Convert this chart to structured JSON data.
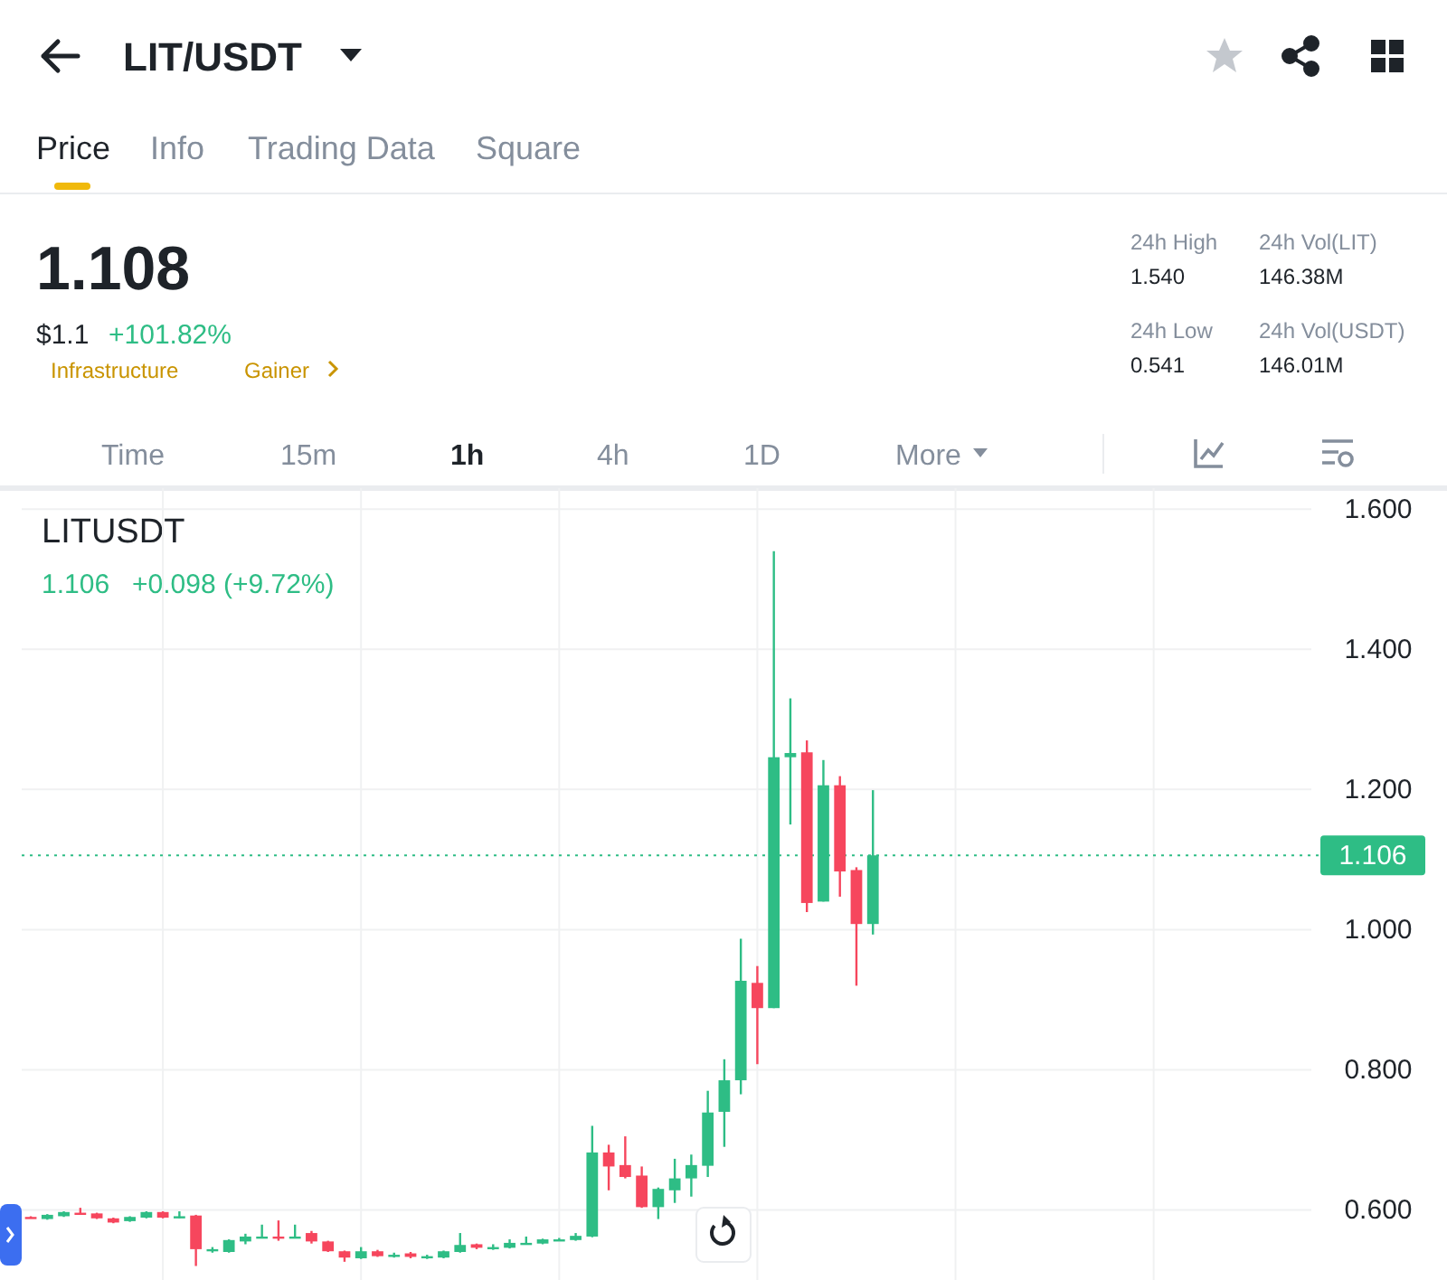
{
  "chart_data": {
    "type": "candlestick",
    "title": "LIT/USDT",
    "annotations": [
      "Price",
      "Info",
      "Trading Data",
      "Square",
      "1.108",
      "$1.1",
      "+101.82%",
      "Infrastructure",
      "Gainer",
      "24h High",
      "1.540",
      "24h Low",
      "0.541",
      "24h Vol(LIT)",
      "146.38M",
      "24h Vol(USDT)",
      "146.01M",
      "Time",
      "15m",
      "1h",
      "4h",
      "1D",
      "More",
      "LITUSDT",
      "1.106",
      "+0.098 (+9.72%)"
    ],
    "categories": [
      null,
      null,
      null,
      null,
      null,
      null,
      null,
      null,
      null,
      null,
      null,
      null,
      null,
      null,
      null,
      null,
      null,
      null,
      null,
      null,
      null,
      null,
      null,
      null,
      null,
      null,
      null,
      null,
      null,
      null,
      null,
      null,
      null,
      null,
      null,
      null,
      null,
      null,
      null,
      null,
      null,
      null,
      null,
      null,
      null,
      null,
      null,
      null,
      null,
      null,
      null,
      null,
      null,
      null,
      null,
      null,
      null,
      null,
      null,
      null,
      null,
      null,
      null,
      null,
      null,
      null,
      null,
      null,
      null,
      null,
      null,
      null,
      null,
      null,
      null,
      null,
      null,
      null
    ],
    "ohlc": [
      [
        0.59,
        0.591,
        0.588,
        0.589
      ],
      [
        0.587,
        0.594,
        0.586,
        0.593
      ],
      [
        0.591,
        0.598,
        0.59,
        0.597
      ],
      [
        0.596,
        0.603,
        0.594,
        0.595
      ],
      [
        0.595,
        0.596,
        0.587,
        0.588
      ],
      [
        0.588,
        0.589,
        0.581,
        0.582
      ],
      [
        0.584,
        0.591,
        0.583,
        0.59
      ],
      [
        0.589,
        0.598,
        0.588,
        0.597
      ],
      [
        0.597,
        0.598,
        0.588,
        0.589
      ],
      [
        0.59,
        0.598,
        0.588,
        0.591
      ],
      [
        0.592,
        0.593,
        0.52,
        0.544
      ],
      [
        0.543,
        0.547,
        0.539,
        0.544
      ],
      [
        0.54,
        0.558,
        0.539,
        0.557
      ],
      [
        0.555,
        0.566,
        0.551,
        0.562
      ],
      [
        0.561,
        0.579,
        0.56,
        0.562
      ],
      [
        0.562,
        0.585,
        0.556,
        0.561
      ],
      [
        0.561,
        0.579,
        0.56,
        0.562
      ],
      [
        0.567,
        0.57,
        0.552,
        0.555
      ],
      [
        0.555,
        0.556,
        0.54,
        0.541
      ],
      [
        0.541,
        0.542,
        0.526,
        0.532
      ],
      [
        0.531,
        0.547,
        0.53,
        0.541
      ],
      [
        0.541,
        0.543,
        0.533,
        0.534
      ],
      [
        0.535,
        0.539,
        0.532,
        0.536
      ],
      [
        0.538,
        0.54,
        0.531,
        0.533
      ],
      [
        0.533,
        0.536,
        0.53,
        0.534
      ],
      [
        0.532,
        0.542,
        0.531,
        0.541
      ],
      [
        0.54,
        0.567,
        0.539,
        0.55
      ],
      [
        0.551,
        0.552,
        0.544,
        0.546
      ],
      [
        0.546,
        0.551,
        0.543,
        0.547
      ],
      [
        0.546,
        0.558,
        0.545,
        0.553
      ],
      [
        0.552,
        0.562,
        0.551,
        0.553
      ],
      [
        0.552,
        0.559,
        0.551,
        0.558
      ],
      [
        0.557,
        0.56,
        0.556,
        0.558
      ],
      [
        0.557,
        0.567,
        0.556,
        0.563
      ],
      [
        0.562,
        0.72,
        0.561,
        0.682
      ],
      [
        0.682,
        0.693,
        0.628,
        0.662
      ],
      [
        0.664,
        0.705,
        0.645,
        0.647
      ],
      [
        0.649,
        0.662,
        0.603,
        0.604
      ],
      [
        0.604,
        0.632,
        0.587,
        0.63
      ],
      [
        0.628,
        0.673,
        0.61,
        0.645
      ],
      [
        0.645,
        0.679,
        0.619,
        0.664
      ],
      [
        0.663,
        0.77,
        0.647,
        0.739
      ],
      [
        0.74,
        0.815,
        0.69,
        0.785
      ],
      [
        0.785,
        0.987,
        0.765,
        0.927
      ],
      [
        0.924,
        0.948,
        0.808,
        0.888
      ],
      [
        0.888,
        1.54,
        0.888,
        1.246
      ],
      [
        1.246,
        1.33,
        1.15,
        1.252
      ],
      [
        1.253,
        1.27,
        1.025,
        1.038
      ],
      [
        1.04,
        1.242,
        1.04,
        1.206
      ],
      [
        1.206,
        1.219,
        1.047,
        1.083
      ],
      [
        1.085,
        1.089,
        0.92,
        1.008
      ],
      [
        1.008,
        1.199,
        0.993,
        1.106
      ],
      null,
      null,
      null,
      null,
      null,
      null,
      null,
      null,
      null,
      null,
      null,
      null,
      null,
      null,
      null,
      null,
      null,
      null,
      null,
      null,
      null,
      null,
      null,
      null,
      null,
      null
    ],
    "ylim": [
      0.5,
      1.63
    ],
    "yticks": [
      {
        "value": 0.6,
        "label": "0.600"
      },
      {
        "value": 0.8,
        "label": "0.800"
      },
      {
        "value": 1.0,
        "label": "1.000"
      },
      {
        "value": 1.2,
        "label": "1.200"
      },
      {
        "value": 1.4,
        "label": "1.400"
      },
      {
        "value": 1.6,
        "label": "1.600"
      }
    ],
    "tick_labels": "y",
    "grid": true,
    "ref_lines": [
      {
        "axis": "y",
        "value": 1.106,
        "label": "1.106",
        "color": "#2ebd85",
        "line_style": "dotted"
      }
    ]
  }
}
